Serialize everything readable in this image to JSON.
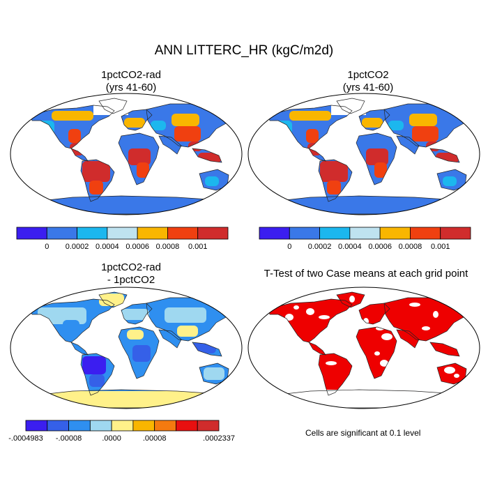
{
  "title": "ANN LITTERC_HR (kgC/m2d)",
  "panels": [
    {
      "id": "p1",
      "title_lines": [
        "1pctCO2-rad",
        "(yrs 41-60)"
      ],
      "scheme": "abs"
    },
    {
      "id": "p2",
      "title_lines": [
        "1pctCO2",
        "(yrs 41-60)"
      ],
      "scheme": "abs"
    },
    {
      "id": "p3",
      "title_lines": [
        "1pctCO2-rad",
        "- 1pctCO2"
      ],
      "scheme": "diff"
    },
    {
      "id": "p4",
      "title_lines": [
        "T-Test of two Case means at each grid point"
      ],
      "scheme": "ttest"
    }
  ],
  "colorbars": {
    "abs": {
      "colors": [
        "#3b1ef0",
        "#3a78e8",
        "#1cb7ee",
        "#bfe3f0",
        "#f9b600",
        "#f04010",
        "#d02c2c"
      ],
      "labels": [
        "0",
        "0.0002",
        "0.0004",
        "0.0006",
        "0.0008",
        "0.001"
      ]
    },
    "diff": {
      "colors": [
        "#3b1ef0",
        "#3560e8",
        "#2f8ff0",
        "#9fd8f0",
        "#fff18a",
        "#f9b600",
        "#f47a10",
        "#e81010",
        "#d02c2c"
      ],
      "labels": [
        ".0004983",
        ".00008",
        ".0000",
        ".00008",
        ".0002337"
      ],
      "label_prefixes": [
        "-",
        "-",
        "",
        "",
        ""
      ],
      "label_positions": [
        0,
        2,
        4,
        6,
        9
      ]
    }
  },
  "ttest_color": "#ee0000",
  "note": "Cells are significant at 0.1 level"
}
